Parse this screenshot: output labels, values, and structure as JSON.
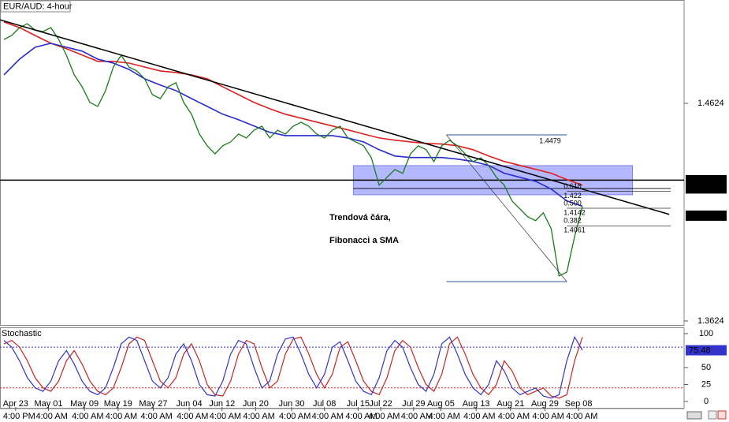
{
  "chart_data": [
    {
      "type": "line",
      "title": "EUR/AUD: 4-hour",
      "annotation": [
        "Trendová čára,",
        "Fibonacci a SMA"
      ],
      "xlim": [
        -0.5,
        87
      ],
      "ylim": [
        1.3602,
        1.5099
      ],
      "yticks": [
        1.4624,
        1.3624
      ],
      "xticks": [
        {
          "value": 1.5,
          "label": "Apr 23"
        },
        {
          "value": 5.7,
          "label": "May 01"
        },
        {
          "value": 10.3,
          "label": "May 09"
        },
        {
          "value": 14.6,
          "label": "May 19"
        },
        {
          "value": 19.1,
          "label": "May 27"
        },
        {
          "value": 23.7,
          "label": "Jun 04"
        },
        {
          "value": 27.9,
          "label": "Jun 12"
        },
        {
          "value": 32.2,
          "label": "Jun 20"
        },
        {
          "value": 36.8,
          "label": "Jun 30"
        },
        {
          "value": 41,
          "label": "Jul 08"
        },
        {
          "value": 45.3,
          "label": "Jul 15"
        },
        {
          "value": 48.2,
          "label": "Jul 22"
        },
        {
          "value": 52.4,
          "label": "Jul 29"
        },
        {
          "value": 55.9,
          "label": "Aug 05"
        },
        {
          "value": 60.4,
          "label": "Aug 13"
        },
        {
          "value": 64.8,
          "label": "Aug 21"
        },
        {
          "value": 69.2,
          "label": "Aug 29"
        },
        {
          "value": 73.5,
          "label": "Sep 08"
        }
      ],
      "time_labels": [
        "4:00 PM",
        "4:00 AM",
        "4:00 AM",
        "4:00 AM",
        "4:00 AM",
        "4:00 AM",
        "4:00 AM",
        "4:00 AM",
        "4:00 AM",
        "4:00 AM",
        "4:00 AM",
        "4:00 AM",
        "4:00 AM",
        "4:00 AM",
        "4:00 AM",
        "4:00 AM",
        "4:00 AM",
        "4:00 AM"
      ],
      "x": [
        0,
        1,
        2,
        3,
        4,
        5,
        6,
        7,
        8,
        9,
        10,
        11,
        12,
        13,
        14,
        15,
        16,
        17,
        18,
        19,
        20,
        21,
        22,
        23,
        24,
        25,
        26,
        27,
        28,
        29,
        30,
        31,
        32,
        33,
        34,
        35,
        36,
        37,
        38,
        39,
        40,
        41,
        42,
        43,
        44,
        45,
        46,
        47,
        48,
        49,
        50,
        51,
        52,
        53,
        54,
        55,
        56,
        57,
        58,
        59,
        60,
        61,
        62,
        63,
        64,
        65,
        66,
        67,
        68,
        69,
        70,
        71,
        72,
        73,
        74
      ],
      "series": [
        {
          "color": "#1a7a1a",
          "values": [
            1.4918,
            1.4936,
            1.4972,
            1.499,
            1.4961,
            1.4954,
            1.4972,
            1.4918,
            1.4845,
            1.4755,
            1.47,
            1.4628,
            1.461,
            1.4682,
            1.4791,
            1.4845,
            1.4791,
            1.4773,
            1.4737,
            1.4664,
            1.4646,
            1.47,
            1.4719,
            1.4628,
            1.4574,
            1.4483,
            1.4429,
            1.4392,
            1.4429,
            1.4447,
            1.4483,
            1.4465,
            1.4501,
            1.4519,
            1.4465,
            1.4501,
            1.4483,
            1.4519,
            1.4537,
            1.4519,
            1.4483,
            1.4465,
            1.4501,
            1.4519,
            1.4465,
            1.4447,
            1.4429,
            1.4374,
            1.4248,
            1.4284,
            1.432,
            1.4302,
            1.4392,
            1.4429,
            1.4411,
            1.4356,
            1.4429,
            1.4454,
            1.4429,
            1.4392,
            1.4356,
            1.4374,
            1.4338,
            1.4284,
            1.4248,
            1.4175,
            1.4139,
            1.4103,
            1.4085,
            1.4121,
            1.4048,
            1.3831,
            1.3849,
            1.4012,
            1.415
          ]
        },
        {
          "color": "#2a2ad0",
          "x": [
            0,
            2,
            4,
            6,
            8,
            10,
            12,
            14,
            16,
            18,
            20,
            22,
            24,
            26,
            28,
            30,
            32,
            34,
            36,
            38,
            40,
            42,
            44,
            46,
            48,
            50,
            52,
            54,
            56,
            58,
            60,
            62,
            64,
            66,
            68,
            70,
            72,
            74
          ],
          "values": [
            1.4755,
            1.4827,
            1.4882,
            1.49,
            1.4882,
            1.4864,
            1.4827,
            1.4809,
            1.478,
            1.4737,
            1.4708,
            1.4683,
            1.4646,
            1.461,
            1.4574,
            1.4549,
            1.452,
            1.4491,
            1.4476,
            1.4476,
            1.4476,
            1.4476,
            1.4465,
            1.4447,
            1.4411,
            1.4382,
            1.4375,
            1.4375,
            1.4375,
            1.4368,
            1.4357,
            1.4339,
            1.4303,
            1.4284,
            1.4266,
            1.423,
            1.4176,
            1.4151
          ]
        },
        {
          "color": "#e02020",
          "x": [
            0,
            2,
            4,
            6,
            8,
            10,
            12,
            14,
            16,
            18,
            20,
            22,
            24,
            26,
            28,
            30,
            32,
            34,
            36,
            38,
            40,
            42,
            44,
            46,
            48,
            50,
            52,
            54,
            56,
            58,
            60,
            62,
            64,
            66,
            68,
            70,
            72,
            74
          ],
          "values": [
            1.4998,
            1.4972,
            1.4936,
            1.49,
            1.4875,
            1.4846,
            1.4817,
            1.4817,
            1.4809,
            1.4791,
            1.4773,
            1.4766,
            1.4755,
            1.4737,
            1.47,
            1.4664,
            1.4628,
            1.4599,
            1.4574,
            1.4556,
            1.4538,
            1.452,
            1.4502,
            1.4483,
            1.4465,
            1.4455,
            1.4447,
            1.444,
            1.4437,
            1.4429,
            1.4411,
            1.4382,
            1.4357,
            1.4339,
            1.4321,
            1.4303,
            1.4274,
            1.4248
          ]
        }
      ],
      "zone": {
        "x": [
          44.7,
          80.4
        ],
        "values": [
          1.4204,
          1.4338
        ],
        "color": "#9aa0ff"
      },
      "trendline": {
        "x": [
          -0.5,
          85.1
        ],
        "values": [
          1.5008,
          1.4114
        ]
      },
      "price_lines": [
        1.4271,
        1.4233
      ],
      "current_price": 1.4108,
      "fibonacci": {
        "x": [
          56.6,
          72.0,
          85.3
        ],
        "high": 1.4479,
        "low": 1.3805,
        "levels": [
          {
            "ratio": "0.618",
            "value": 1.422
          },
          {
            "ratio": "0.500",
            "value": 1.4142
          },
          {
            "ratio": "0.382",
            "value": 1.4061
          }
        ]
      }
    },
    {
      "type": "line",
      "title": "Stochastic",
      "xlim": [
        -0.5,
        87
      ],
      "ylim": [
        -10.5,
        108.1
      ],
      "yticks": [
        100,
        50,
        25,
        0
      ],
      "levels": [
        80,
        20
      ],
      "series": [
        {
          "color": "#3333cc",
          "values": [
            90,
            80,
            60,
            35,
            20,
            15,
            30,
            60,
            75,
            55,
            30,
            15,
            10,
            20,
            50,
            85,
            95,
            90,
            60,
            30,
            20,
            35,
            70,
            85,
            60,
            25,
            10,
            8,
            30,
            70,
            90,
            85,
            50,
            20,
            30,
            70,
            92,
            95,
            70,
            40,
            20,
            40,
            80,
            88,
            60,
            30,
            15,
            10,
            35,
            75,
            90,
            80,
            50,
            25,
            15,
            40,
            85,
            95,
            70,
            40,
            20,
            10,
            25,
            60,
            45,
            20,
            10,
            15,
            20,
            8,
            5,
            10,
            60,
            95,
            75.48
          ]
        },
        {
          "color": "#cc2222",
          "values": [
            85,
            90,
            80,
            60,
            35,
            20,
            15,
            30,
            60,
            75,
            55,
            30,
            15,
            10,
            20,
            50,
            85,
            95,
            90,
            60,
            30,
            20,
            35,
            70,
            85,
            60,
            25,
            10,
            8,
            30,
            70,
            90,
            85,
            50,
            20,
            30,
            70,
            92,
            95,
            70,
            40,
            20,
            40,
            80,
            88,
            60,
            30,
            15,
            10,
            35,
            75,
            90,
            80,
            50,
            25,
            15,
            40,
            85,
            95,
            70,
            40,
            20,
            10,
            25,
            60,
            45,
            20,
            10,
            15,
            20,
            8,
            5,
            10,
            60,
            95
          ]
        }
      ]
    }
  ]
}
